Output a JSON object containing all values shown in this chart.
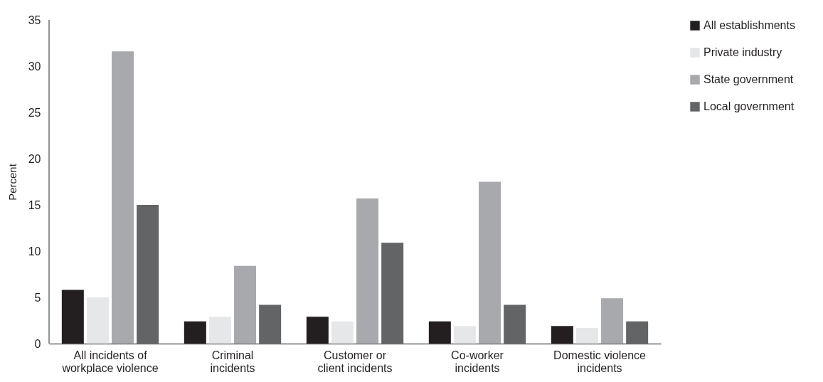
{
  "chart_data": {
    "type": "bar",
    "ylabel": "Percent",
    "categories": [
      "All incidents of workplace violence",
      "Criminal incidents",
      "Customer or client incidents",
      "Co-worker incidents",
      "Domestic violence incidents"
    ],
    "series": [
      {
        "name": "All establishments",
        "color": "#231f20",
        "values": [
          5.8,
          2.4,
          2.9,
          2.4,
          1.9
        ]
      },
      {
        "name": "Private industry",
        "color": "#e6e7e8",
        "values": [
          5.0,
          2.9,
          2.4,
          1.9,
          1.7
        ]
      },
      {
        "name": "State government",
        "color": "#a7a9ac",
        "values": [
          31.6,
          8.4,
          15.7,
          17.5,
          4.9
        ]
      },
      {
        "name": "Local government",
        "color": "#636466",
        "values": [
          15.0,
          4.2,
          10.9,
          4.2,
          2.4
        ]
      }
    ],
    "ylim": [
      0,
      35
    ],
    "yticks": [
      0,
      5,
      10,
      15,
      20,
      25,
      30,
      35
    ],
    "grid": false,
    "legend": "right"
  }
}
